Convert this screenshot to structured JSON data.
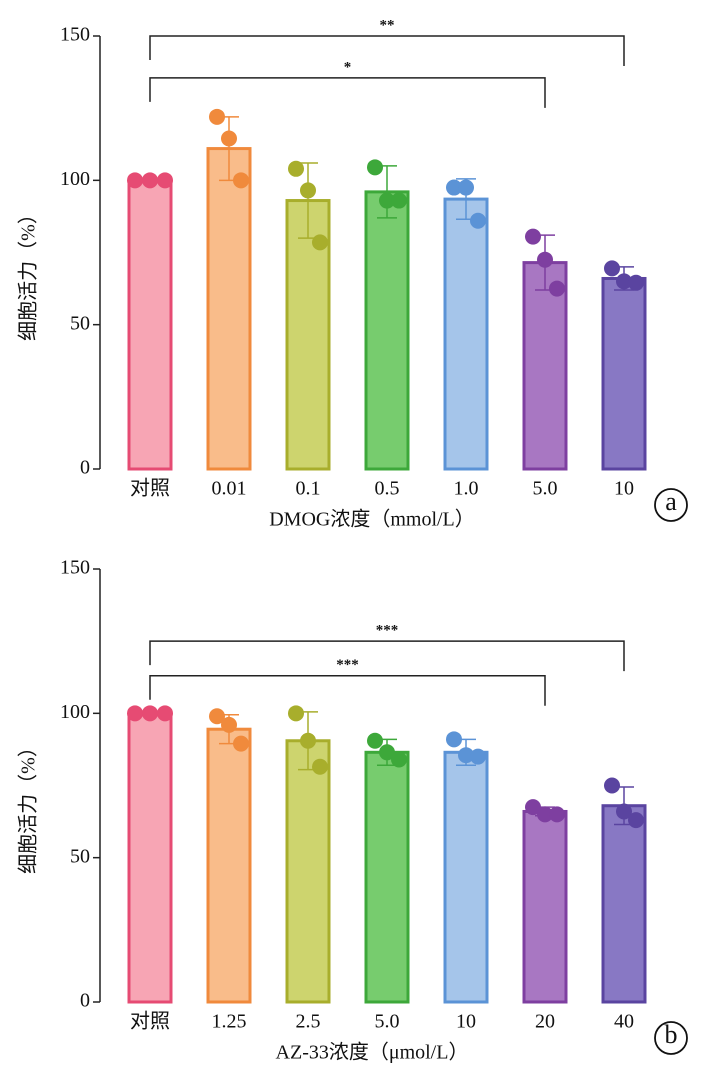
{
  "chart_data": [
    {
      "type": "bar",
      "panel_label": "a",
      "ylabel": "细胞活力（%）",
      "xlabel": "DMOG浓度（mmol/L）",
      "categories": [
        "对照",
        "0.01",
        "0.1",
        "0.5",
        "1.0",
        "5.0",
        "10"
      ],
      "values": [
        100,
        111,
        93,
        96,
        93.5,
        71.5,
        66
      ],
      "errors": [
        0,
        11,
        13,
        9,
        7,
        9.5,
        4
      ],
      "points": [
        [
          100,
          100,
          100
        ],
        [
          122,
          114.5,
          100
        ],
        [
          104,
          96.5,
          78.5
        ],
        [
          104.5,
          93,
          93
        ],
        [
          97.5,
          97.5,
          86
        ],
        [
          80.5,
          72.5,
          62.5
        ],
        [
          69.5,
          65,
          64.5
        ]
      ],
      "colors": [
        "#f7a5b4",
        "#f9bc8a",
        "#cdd46e",
        "#77cc6e",
        "#a5c5ea",
        "#a877c2",
        "#8878c4"
      ],
      "edge_colors": [
        "#e64b73",
        "#f08a3c",
        "#a8ae2c",
        "#3da83a",
        "#5b93d6",
        "#7e3fa0",
        "#5a44a0"
      ],
      "ylim": [
        0,
        150
      ],
      "yticks": [
        0,
        50,
        100,
        150
      ],
      "brackets": [
        {
          "from": 0,
          "to": 6,
          "y": 150,
          "label": "**"
        },
        {
          "from": 0,
          "to": 5,
          "y": 135.5,
          "label": "*"
        }
      ]
    },
    {
      "type": "bar",
      "panel_label": "b",
      "ylabel": "细胞活力（%）",
      "xlabel": "AZ-33浓度（μmol/L）",
      "categories": [
        "对照",
        "1.25",
        "2.5",
        "5.0",
        "10",
        "20",
        "40"
      ],
      "values": [
        100,
        94.5,
        90.5,
        86.5,
        86.5,
        66,
        68
      ],
      "errors": [
        0,
        5,
        10,
        4.5,
        4.5,
        1.5,
        6.5
      ],
      "points": [
        [
          100,
          100,
          100
        ],
        [
          99,
          96,
          89.5
        ],
        [
          100,
          90.5,
          81.5
        ],
        [
          90.5,
          86.5,
          84
        ],
        [
          91,
          85.5,
          85
        ],
        [
          67.5,
          65,
          65
        ],
        [
          75,
          66,
          63
        ]
      ],
      "colors": [
        "#f7a5b4",
        "#f9bc8a",
        "#cdd46e",
        "#77cc6e",
        "#a5c5ea",
        "#a877c2",
        "#8878c4"
      ],
      "edge_colors": [
        "#e64b73",
        "#f08a3c",
        "#a8ae2c",
        "#3da83a",
        "#5b93d6",
        "#7e3fa0",
        "#5a44a0"
      ],
      "ylim": [
        0,
        150
      ],
      "yticks": [
        0,
        50,
        100,
        150
      ],
      "brackets": [
        {
          "from": 0,
          "to": 6,
          "y": 125,
          "label": "***"
        },
        {
          "from": 0,
          "to": 5,
          "y": 113,
          "label": "***"
        }
      ]
    }
  ]
}
